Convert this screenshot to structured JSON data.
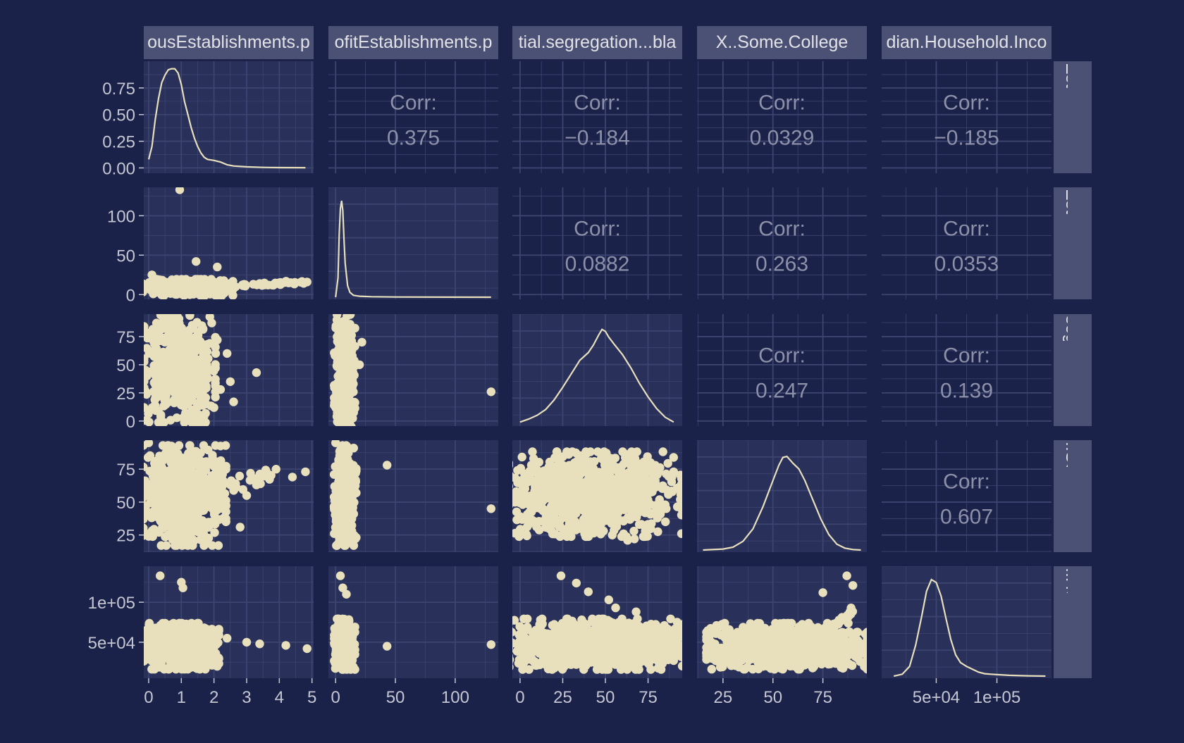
{
  "chart_data": {
    "type": "scatter",
    "layout": "scatterplot-matrix",
    "colors": {
      "background": "#1b2249",
      "panel": "#29305a",
      "grid": "#3c4470",
      "strip": "#4a5174",
      "strip_text": "#e2e2e6",
      "ink": "#e8dfbd",
      "axis_text": "#c4c6d2",
      "corr_text": "#8c90a8"
    },
    "column_strips": [
      "ousEstablishments.p",
      "ofitEstablishments.p",
      "tial.segregation...bla",
      "X..Some.College",
      "dian.Household.Inco"
    ],
    "row_strips": [
      "Establishmer",
      "Establishmer",
      "segregation..",
      "..Some.Colleg",
      "..Household.I"
    ],
    "variables": [
      {
        "range": [
          -0.15,
          5.05
        ],
        "ticks": [
          0,
          1,
          2,
          3,
          4,
          5
        ],
        "tick_labels": [
          "0",
          "1",
          "2",
          "3",
          "4",
          "5"
        ]
      },
      {
        "range": [
          -6,
          136
        ],
        "ticks": [
          0,
          50,
          100
        ],
        "tick_labels": [
          "0",
          "50",
          "100"
        ]
      },
      {
        "range": [
          -4.5,
          95
        ],
        "ticks": [
          0,
          25,
          50,
          75
        ],
        "tick_labels": [
          "0",
          "25",
          "50",
          "75"
        ]
      },
      {
        "range": [
          12,
          97
        ],
        "ticks": [
          25,
          50,
          75
        ],
        "tick_labels": [
          "25",
          "50",
          "75"
        ]
      },
      {
        "range": [
          5000,
          145000
        ],
        "ticks": [
          50000,
          100000
        ],
        "tick_labels": [
          "5e+04",
          "1e+05"
        ]
      }
    ],
    "diagonal_density": [
      {
        "ylim": [
          -0.05,
          1.0
        ],
        "yticks": [
          0,
          0.25,
          0.5,
          0.75
        ],
        "ytick_labels": [
          "0.00",
          "0.25",
          "0.50",
          "0.75"
        ],
        "curve": [
          [
            0.0,
            0.08
          ],
          [
            0.1,
            0.2
          ],
          [
            0.2,
            0.45
          ],
          [
            0.3,
            0.65
          ],
          [
            0.4,
            0.8
          ],
          [
            0.5,
            0.87
          ],
          [
            0.6,
            0.92
          ],
          [
            0.7,
            0.93
          ],
          [
            0.8,
            0.93
          ],
          [
            0.9,
            0.89
          ],
          [
            1.0,
            0.78
          ],
          [
            1.1,
            0.62
          ],
          [
            1.2,
            0.5
          ],
          [
            1.3,
            0.38
          ],
          [
            1.4,
            0.28
          ],
          [
            1.5,
            0.2
          ],
          [
            1.6,
            0.14
          ],
          [
            1.7,
            0.1
          ],
          [
            1.8,
            0.08
          ],
          [
            1.9,
            0.075
          ],
          [
            2.0,
            0.07
          ],
          [
            2.2,
            0.055
          ],
          [
            2.4,
            0.03
          ],
          [
            2.6,
            0.018
          ],
          [
            3.0,
            0.01
          ],
          [
            3.5,
            0.005
          ],
          [
            4.0,
            0.003
          ],
          [
            4.8,
            0.002
          ]
        ]
      },
      {
        "curve": [
          [
            0,
            0.0
          ],
          [
            2,
            0.2
          ],
          [
            3,
            0.65
          ],
          [
            4,
            0.92
          ],
          [
            5,
            1.0
          ],
          [
            6,
            0.9
          ],
          [
            7,
            0.6
          ],
          [
            8,
            0.35
          ],
          [
            10,
            0.12
          ],
          [
            12,
            0.05
          ],
          [
            15,
            0.02
          ],
          [
            20,
            0.01
          ],
          [
            30,
            0.005
          ],
          [
            50,
            0.002
          ],
          [
            130,
            0.0
          ]
        ]
      },
      {
        "curve": [
          [
            0,
            0.02
          ],
          [
            5,
            0.05
          ],
          [
            10,
            0.09
          ],
          [
            15,
            0.15
          ],
          [
            20,
            0.25
          ],
          [
            25,
            0.38
          ],
          [
            30,
            0.52
          ],
          [
            35,
            0.66
          ],
          [
            40,
            0.74
          ],
          [
            43,
            0.82
          ],
          [
            46,
            0.92
          ],
          [
            48,
            0.98
          ],
          [
            50,
            0.96
          ],
          [
            52,
            0.9
          ],
          [
            55,
            0.83
          ],
          [
            60,
            0.72
          ],
          [
            65,
            0.58
          ],
          [
            70,
            0.42
          ],
          [
            75,
            0.28
          ],
          [
            80,
            0.16
          ],
          [
            85,
            0.07
          ],
          [
            90,
            0.02
          ]
        ]
      },
      {
        "curve": [
          [
            15,
            0.0
          ],
          [
            25,
            0.01
          ],
          [
            30,
            0.03
          ],
          [
            35,
            0.09
          ],
          [
            40,
            0.22
          ],
          [
            45,
            0.45
          ],
          [
            50,
            0.72
          ],
          [
            53,
            0.88
          ],
          [
            55,
            0.96
          ],
          [
            57,
            0.97
          ],
          [
            60,
            0.9
          ],
          [
            63,
            0.84
          ],
          [
            66,
            0.72
          ],
          [
            70,
            0.52
          ],
          [
            74,
            0.32
          ],
          [
            78,
            0.16
          ],
          [
            82,
            0.06
          ],
          [
            86,
            0.02
          ],
          [
            90,
            0.005
          ],
          [
            94,
            0.0
          ]
        ]
      },
      {
        "curve": [
          [
            15000,
            0.0
          ],
          [
            22000,
            0.02
          ],
          [
            28000,
            0.1
          ],
          [
            33000,
            0.32
          ],
          [
            38000,
            0.62
          ],
          [
            42000,
            0.88
          ],
          [
            46000,
            1.0
          ],
          [
            50000,
            0.97
          ],
          [
            54000,
            0.83
          ],
          [
            58000,
            0.6
          ],
          [
            62000,
            0.38
          ],
          [
            66000,
            0.22
          ],
          [
            70000,
            0.14
          ],
          [
            75000,
            0.1
          ],
          [
            80000,
            0.07
          ],
          [
            85000,
            0.04
          ],
          [
            90000,
            0.025
          ],
          [
            95000,
            0.02
          ],
          [
            100000,
            0.015
          ],
          [
            110000,
            0.008
          ],
          [
            125000,
            0.003
          ],
          [
            140000,
            0.0
          ]
        ]
      }
    ],
    "correlations": [
      {
        "row": 0,
        "col": 1,
        "label": "Corr:",
        "value": "0.375"
      },
      {
        "row": 0,
        "col": 2,
        "label": "Corr:",
        "value": "−0.184"
      },
      {
        "row": 0,
        "col": 3,
        "label": "Corr:",
        "value": "0.0329"
      },
      {
        "row": 0,
        "col": 4,
        "label": "Corr:",
        "value": "−0.185"
      },
      {
        "row": 1,
        "col": 2,
        "label": "Corr:",
        "value": "0.0882"
      },
      {
        "row": 1,
        "col": 3,
        "label": "Corr:",
        "value": "0.263"
      },
      {
        "row": 1,
        "col": 4,
        "label": "Corr:",
        "value": "0.0353"
      },
      {
        "row": 2,
        "col": 3,
        "label": "Corr:",
        "value": "0.247"
      },
      {
        "row": 2,
        "col": 4,
        "label": "Corr:",
        "value": "0.139"
      },
      {
        "row": 3,
        "col": 4,
        "label": "Corr:",
        "value": "0.607"
      }
    ],
    "scatter_clouds": [
      {
        "row": 1,
        "col": 0,
        "count": 420,
        "x": [
          0.0,
          2.4
        ],
        "y": [
          0,
          18
        ],
        "trend": [
          [
            0.0,
            4
          ],
          [
            1.0,
            6
          ],
          [
            2.0,
            8
          ],
          [
            3.0,
            12
          ],
          [
            4.0,
            14
          ],
          [
            4.8,
            16
          ]
        ],
        "outliers": [
          [
            0.95,
            133
          ],
          [
            1.45,
            42
          ],
          [
            2.1,
            35
          ],
          [
            4.0,
            15
          ],
          [
            4.85,
            16
          ],
          [
            3.4,
            14
          ],
          [
            0.1,
            25
          ]
        ]
      },
      {
        "row": 2,
        "col": 0,
        "count": 520,
        "x": [
          0.0,
          1.9
        ],
        "y": [
          5,
          88
        ],
        "outliers": [
          [
            2.1,
            72
          ],
          [
            2.05,
            60
          ],
          [
            2.4,
            60
          ],
          [
            2.5,
            35
          ],
          [
            3.3,
            43
          ],
          [
            2.6,
            17
          ],
          [
            2.2,
            28
          ]
        ]
      },
      {
        "row": 2,
        "col": 1,
        "count": 300,
        "x": [
          0,
          15
        ],
        "y": [
          0,
          88
        ],
        "outliers": [
          [
            22,
            70
          ],
          [
            20,
            50
          ],
          [
            130,
            26
          ]
        ]
      },
      {
        "row": 3,
        "col": 0,
        "count": 620,
        "x": [
          0.0,
          2.2
        ],
        "y": [
          22,
          88
        ],
        "trend": [
          [
            0.0,
            52
          ],
          [
            1.0,
            56
          ],
          [
            2.0,
            60
          ],
          [
            3.0,
            65
          ],
          [
            3.8,
            72
          ]
        ],
        "outliers": [
          [
            0.0,
            95
          ],
          [
            4.8,
            73
          ],
          [
            4.4,
            69
          ],
          [
            3.9,
            75
          ],
          [
            3.3,
            63
          ],
          [
            3.0,
            55
          ],
          [
            2.3,
            38
          ],
          [
            2.8,
            31
          ],
          [
            0.9,
            20
          ]
        ]
      },
      {
        "row": 3,
        "col": 1,
        "count": 340,
        "x": [
          0,
          16
        ],
        "y": [
          22,
          88
        ],
        "outliers": [
          [
            0,
            95
          ],
          [
            43,
            78
          ],
          [
            130,
            45
          ]
        ]
      },
      {
        "row": 3,
        "col": 2,
        "count": 900,
        "x": [
          0,
          88
        ],
        "y": [
          28,
          84
        ],
        "outliers": [
          [
            1,
            49
          ],
          [
            90,
            73
          ],
          [
            67,
            22
          ],
          [
            63,
            21
          ],
          [
            5,
            33
          ],
          [
            85,
            48
          ]
        ]
      },
      {
        "row": 4,
        "col": 0,
        "count": 620,
        "x": [
          0.0,
          2.0
        ],
        "y": [
          20000,
          70000
        ],
        "outliers": [
          [
            0.35,
            133000
          ],
          [
            1.0,
            125000
          ],
          [
            1.05,
            118000
          ],
          [
            2.4,
            55000
          ],
          [
            3.0,
            50000
          ],
          [
            3.4,
            48000
          ],
          [
            4.2,
            46000
          ],
          [
            4.85,
            42000
          ],
          [
            1.8,
            62000
          ]
        ]
      },
      {
        "row": 4,
        "col": 1,
        "count": 320,
        "x": [
          0,
          15
        ],
        "y": [
          20000,
          75000
        ],
        "outliers": [
          [
            4,
            133000
          ],
          [
            6,
            118000
          ],
          [
            9,
            110000
          ],
          [
            43,
            45000
          ],
          [
            130,
            47000
          ]
        ]
      },
      {
        "row": 4,
        "col": 2,
        "count": 950,
        "x": [
          0,
          90
        ],
        "y": [
          20000,
          75000
        ],
        "outliers": [
          [
            24,
            133000
          ],
          [
            33,
            124000
          ],
          [
            40,
            113000
          ],
          [
            52,
            103000
          ],
          [
            56,
            93000
          ],
          [
            68,
            88000
          ],
          [
            85,
            30000
          ],
          [
            90,
            27000
          ]
        ]
      },
      {
        "row": 4,
        "col": 3,
        "count": 900,
        "x": [
          22,
          92
        ],
        "y": [
          20000,
          70000
        ],
        "trend": [
          [
            20,
            28000
          ],
          [
            40,
            34000
          ],
          [
            55,
            42000
          ],
          [
            70,
            55000
          ],
          [
            85,
            78000
          ],
          [
            90,
            90000
          ]
        ],
        "outliers": [
          [
            18,
            37000
          ],
          [
            28,
            40000
          ],
          [
            87,
            133000
          ],
          [
            90,
            121000
          ],
          [
            96,
            48000
          ],
          [
            75,
            112000
          ]
        ]
      }
    ]
  }
}
